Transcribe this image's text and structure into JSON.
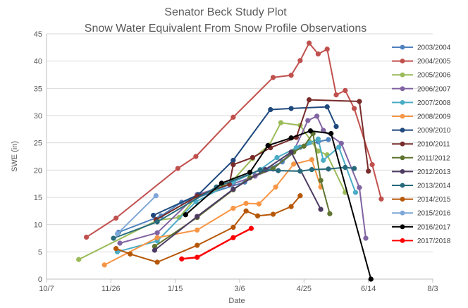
{
  "chart_data": {
    "type": "line",
    "title": "Senator Beck Study Plot",
    "subtitle": "Snow Water Equivalent From Snow Profile Observations",
    "xlabel": "Date",
    "ylabel": "SWE (in)",
    "x_ticks": [
      "10/7",
      "11/26",
      "1/15",
      "3/6",
      "4/25",
      "6/14",
      "8/3"
    ],
    "x_range": [
      "10/7",
      "8/3"
    ],
    "y_ticks": [
      0,
      5,
      10,
      15,
      20,
      25,
      30,
      35,
      40,
      45
    ],
    "ylim": [
      0,
      45
    ],
    "grid": "horizontal",
    "legend_position": "right",
    "series": [
      {
        "name": "2003/2004",
        "color": "#4f81bd",
        "points": [
          [
            "12/2",
            8.6
          ],
          [
            "1/4",
            11.6
          ],
          [
            "1/20",
            14.1
          ],
          [
            "3/10",
            17.8
          ],
          [
            "3/18",
            19.0
          ],
          [
            "4/8",
            21.5
          ],
          [
            "4/22",
            24.2
          ],
          [
            "5/6",
            25.2
          ],
          [
            "5/14",
            25.6
          ]
        ]
      },
      {
        "name": "2004/2005",
        "color": "#c0504d",
        "points": [
          [
            "11/7",
            7.7
          ],
          [
            "11/30",
            11.2
          ],
          [
            "1/17",
            20.3
          ],
          [
            "1/31",
            22.5
          ],
          [
            "3/1",
            29.7
          ],
          [
            "4/1",
            37.0
          ],
          [
            "4/15",
            37.4
          ],
          [
            "4/22",
            40.1
          ],
          [
            "4/29",
            43.3
          ],
          [
            "5/6",
            41.3
          ],
          [
            "5/13",
            42.2
          ],
          [
            "5/20",
            33.8
          ],
          [
            "5/27",
            34.6
          ],
          [
            "6/3",
            31.3
          ],
          [
            "6/17",
            21.0
          ],
          [
            "6/24",
            14.7
          ]
        ]
      },
      {
        "name": "2005/2006",
        "color": "#9bbb59",
        "points": [
          [
            "11/1",
            3.6
          ],
          [
            "1/1",
            10.8
          ],
          [
            "1/18",
            11.3
          ],
          [
            "2/1",
            15.2
          ],
          [
            "2/16",
            16.5
          ],
          [
            "3/1",
            18.2
          ],
          [
            "3/16",
            22.1
          ],
          [
            "3/29",
            24.6
          ],
          [
            "4/7",
            28.7
          ],
          [
            "4/22",
            28.2
          ],
          [
            "5/6",
            23.5
          ],
          [
            "5/13",
            22.8
          ],
          [
            "5/27",
            15.9
          ]
        ]
      },
      {
        "name": "2006/2007",
        "color": "#8064a2",
        "points": [
          [
            "12/3",
            6.6
          ],
          [
            "1/1",
            8.5
          ],
          [
            "2/1",
            15.5
          ],
          [
            "3/1",
            17.5
          ],
          [
            "3/18",
            18.9
          ],
          [
            "4/1",
            20.2
          ],
          [
            "4/17",
            23.5
          ],
          [
            "4/28",
            29.1
          ],
          [
            "5/5",
            29.9
          ],
          [
            "5/10",
            27.3
          ],
          [
            "5/24",
            24.9
          ],
          [
            "6/7",
            16.8
          ],
          [
            "6/12",
            7.5
          ]
        ]
      },
      {
        "name": "2007/2008",
        "color": "#4bacc6",
        "points": [
          [
            "12/1",
            5.0
          ],
          [
            "1/1",
            7.0
          ],
          [
            "1/31",
            14.2
          ],
          [
            "3/1",
            17.8
          ],
          [
            "3/22",
            20.1
          ],
          [
            "4/4",
            22.3
          ],
          [
            "4/19",
            24.1
          ],
          [
            "4/29",
            25.0
          ],
          [
            "5/6",
            25.7
          ],
          [
            "5/10",
            21.8
          ],
          [
            "5/22",
            24.2
          ],
          [
            "6/4",
            15.9
          ]
        ]
      },
      {
        "name": "2008/2009",
        "color": "#f79646",
        "points": [
          [
            "11/21",
            2.6
          ],
          [
            "1/1",
            7.6
          ],
          [
            "2/1",
            9.0
          ],
          [
            "3/1",
            13.0
          ],
          [
            "3/11",
            13.9
          ],
          [
            "3/21",
            13.8
          ],
          [
            "4/3",
            16.9
          ],
          [
            "4/17",
            21.1
          ],
          [
            "5/1",
            21.9
          ],
          [
            "5/8",
            16.9
          ]
        ]
      },
      {
        "name": "2009/2010",
        "color": "#1f497d",
        "points": [
          [
            "12/29",
            11.7
          ],
          [
            "2/2",
            15.5
          ],
          [
            "3/1",
            21.8
          ],
          [
            "3/30",
            31.1
          ],
          [
            "4/15",
            31.3
          ],
          [
            "5/13",
            31.6
          ],
          [
            "5/20",
            28.0
          ]
        ]
      },
      {
        "name": "2010/2011",
        "color": "#772c2a",
        "points": [
          [
            "12/31",
            10.9
          ],
          [
            "2/1",
            15.2
          ],
          [
            "2/26",
            17.4
          ],
          [
            "3/1",
            21.0
          ],
          [
            "3/16",
            22.3
          ],
          [
            "3/30",
            24.1
          ],
          [
            "4/19",
            26.0
          ],
          [
            "4/29",
            32.9
          ],
          [
            "6/7",
            32.6
          ],
          [
            "6/14",
            19.8
          ]
        ]
      },
      {
        "name": "2011/2012",
        "color": "#5f7530",
        "points": [
          [
            "12/30",
            6.0
          ],
          [
            "2/1",
            11.3
          ],
          [
            "3/1",
            16.4
          ],
          [
            "3/14",
            18.6
          ],
          [
            "4/1",
            20.3
          ],
          [
            "4/17",
            23.3
          ],
          [
            "4/25",
            24.4
          ],
          [
            "5/2",
            26.7
          ],
          [
            "5/8",
            18.1
          ],
          [
            "5/15",
            12.0
          ]
        ]
      },
      {
        "name": "2012/2013",
        "color": "#4d3b62",
        "points": [
          [
            "12/30",
            5.3
          ],
          [
            "2/1",
            11.5
          ],
          [
            "3/1",
            16.5
          ],
          [
            "3/26",
            20.1
          ],
          [
            "4/15",
            23.3
          ],
          [
            "5/8",
            12.8
          ]
        ]
      },
      {
        "name": "2013/2014",
        "color": "#276a7c",
        "points": [
          [
            "11/28",
            7.5
          ],
          [
            "1/1",
            10.5
          ],
          [
            "2/16",
            16.9
          ],
          [
            "3/22",
            20.0
          ],
          [
            "4/5",
            19.9
          ],
          [
            "4/22",
            19.8
          ],
          [
            "5/1",
            20.1
          ],
          [
            "5/14",
            20.2
          ],
          [
            "5/27",
            20.5
          ],
          [
            "6/3",
            20.3
          ]
        ]
      },
      {
        "name": "2014/2015",
        "color": "#b65708",
        "points": [
          [
            "11/30",
            5.6
          ],
          [
            "12/11",
            4.6
          ],
          [
            "1/1",
            3.1
          ],
          [
            "2/1",
            6.2
          ],
          [
            "3/1",
            9.5
          ],
          [
            "3/11",
            12.5
          ],
          [
            "3/20",
            11.6
          ],
          [
            "4/1",
            11.9
          ],
          [
            "4/15",
            13.3
          ],
          [
            "4/22",
            15.3
          ]
        ]
      },
      {
        "name": "2015/2016",
        "color": "#7da7d8",
        "points": [
          [
            "12/1",
            8.3
          ],
          [
            "12/31",
            15.3
          ]
        ]
      },
      {
        "name": "2016/2017",
        "color": "#000000",
        "points": [
          [
            "1/23",
            11.8
          ],
          [
            "2/20",
            17.6
          ],
          [
            "3/14",
            19.6
          ],
          [
            "3/28",
            24.5
          ],
          [
            "4/15",
            25.9
          ],
          [
            "4/30",
            27.2
          ],
          [
            "5/16",
            26.7
          ],
          [
            "6/16",
            0.0
          ]
        ]
      },
      {
        "name": "2017/2018",
        "color": "#ff0000",
        "points": [
          [
            "1/20",
            3.7
          ],
          [
            "2/1",
            4.0
          ],
          [
            "3/1",
            7.6
          ],
          [
            "3/15",
            9.3
          ]
        ]
      }
    ]
  }
}
